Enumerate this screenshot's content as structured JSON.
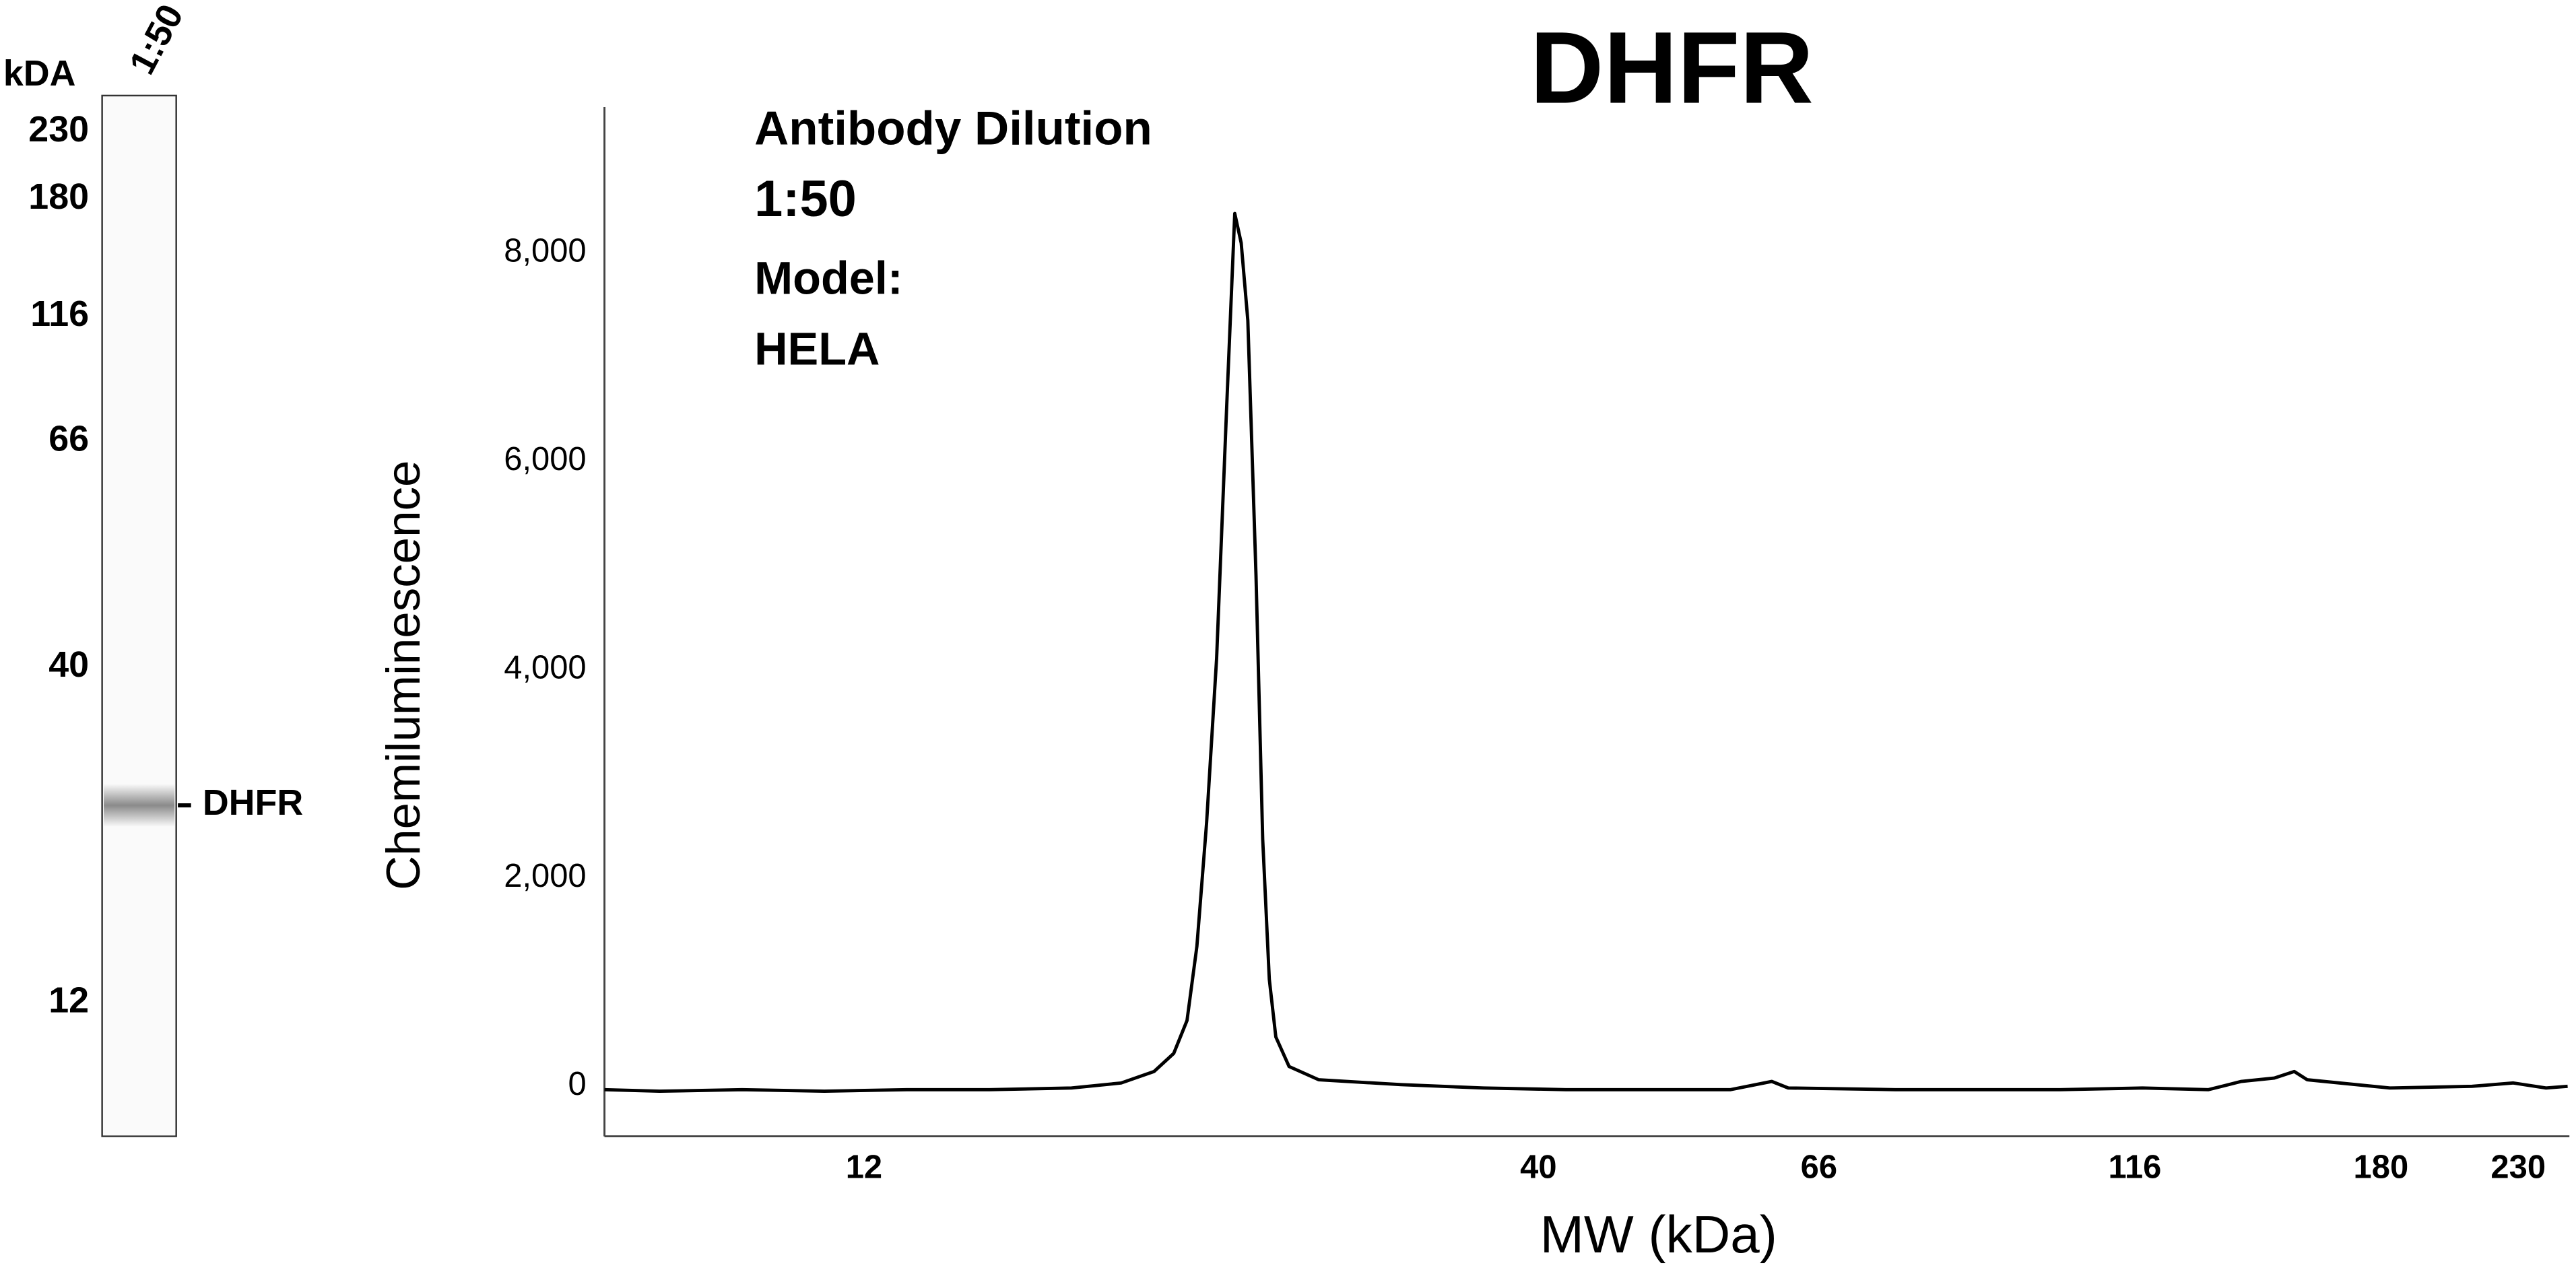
{
  "gel": {
    "unit_label": "kDA",
    "lane_label": "1:50",
    "markers": [
      "230",
      "180",
      "116",
      "66",
      "40",
      "12"
    ],
    "band_label": "DHFR"
  },
  "chart_data": {
    "type": "line",
    "title": "DHFR",
    "annotations": [
      "Antibody Dilution",
      "1:50",
      "Model:",
      "HELA"
    ],
    "x_label": "MW (kDa)",
    "y_label": "Chemiluminescence",
    "x": [
      7.55,
      8.33,
      9.65,
      11.18,
      12.95,
      15.01,
      17.38,
      18.99,
      20.14,
      20.86,
      21.36,
      21.74,
      22.12,
      22.52,
      22.92,
      23.26,
      23.53,
      23.81,
      24.16,
      24.45,
      24.74,
      25.03,
      25.63,
      27.02,
      31.3,
      36.27,
      42.01,
      48.66,
      56.37,
      60.67,
      62.48,
      75.64,
      87.6,
      101.5,
      117.6,
      132.3,
      140.3,
      148.8,
      154.2,
      157.8,
      182.9,
      211.8,
      228,
      241.7,
      251.2
    ],
    "values": [
      -32,
      -47,
      -32,
      -47,
      -32,
      -32,
      -16,
      32,
      142,
      316,
      632,
      1344,
      2530,
      4111,
      6482,
      8379,
      8095,
      7352,
      4901,
      2372,
      1028,
      474,
      190,
      63,
      16,
      -16,
      -32,
      -32,
      -32,
      47,
      -16,
      -32,
      -32,
      -32,
      -16,
      -32,
      47,
      79,
      142,
      63,
      -16,
      0,
      32,
      -16,
      0
    ],
    "color": "#000000",
    "xscale": "log",
    "xlim": [
      7.55,
      252
    ],
    "xticks": [
      12,
      40,
      66,
      116,
      180,
      230
    ],
    "ylim": [
      -480,
      9400
    ],
    "yticks": [
      0,
      {
        "value": 2000,
        "label": "2,000"
      },
      {
        "value": 4000,
        "label": "4,000"
      },
      {
        "value": 6000,
        "label": "6,000"
      },
      {
        "value": 8000,
        "label": "8,000"
      }
    ],
    "grid": false
  }
}
